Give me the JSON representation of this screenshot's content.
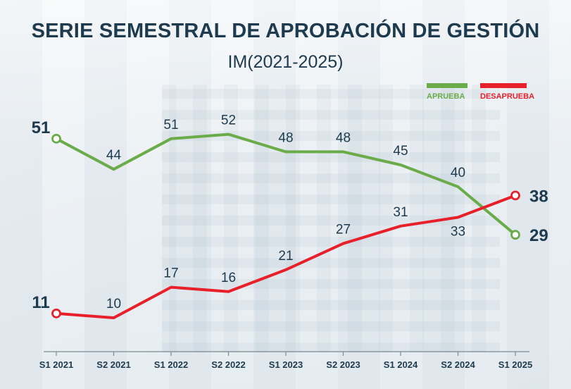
{
  "title": "SERIE SEMESTRAL DE APROBACIÓN DE GESTIÓN",
  "subtitle": "IM(2021-2025)",
  "colors": {
    "aprueba": "#6aab4a",
    "desaprueba": "#e8202a",
    "text": "#1d3a4f"
  },
  "chart_data": {
    "type": "line",
    "categories": [
      "S1 2021",
      "S2 2021",
      "S1 2022",
      "S2 2022",
      "S1 2023",
      "S2 2023",
      "S1 2024",
      "S2 2024",
      "S1 2025"
    ],
    "series": [
      {
        "name": "APRUEBA",
        "values": [
          51,
          44,
          51,
          52,
          48,
          48,
          45,
          40,
          29
        ]
      },
      {
        "name": "DESAPRUEBA",
        "values": [
          11,
          10,
          17,
          16,
          21,
          27,
          31,
          33,
          38
        ]
      }
    ],
    "legend": "top-right",
    "grid": false
  }
}
